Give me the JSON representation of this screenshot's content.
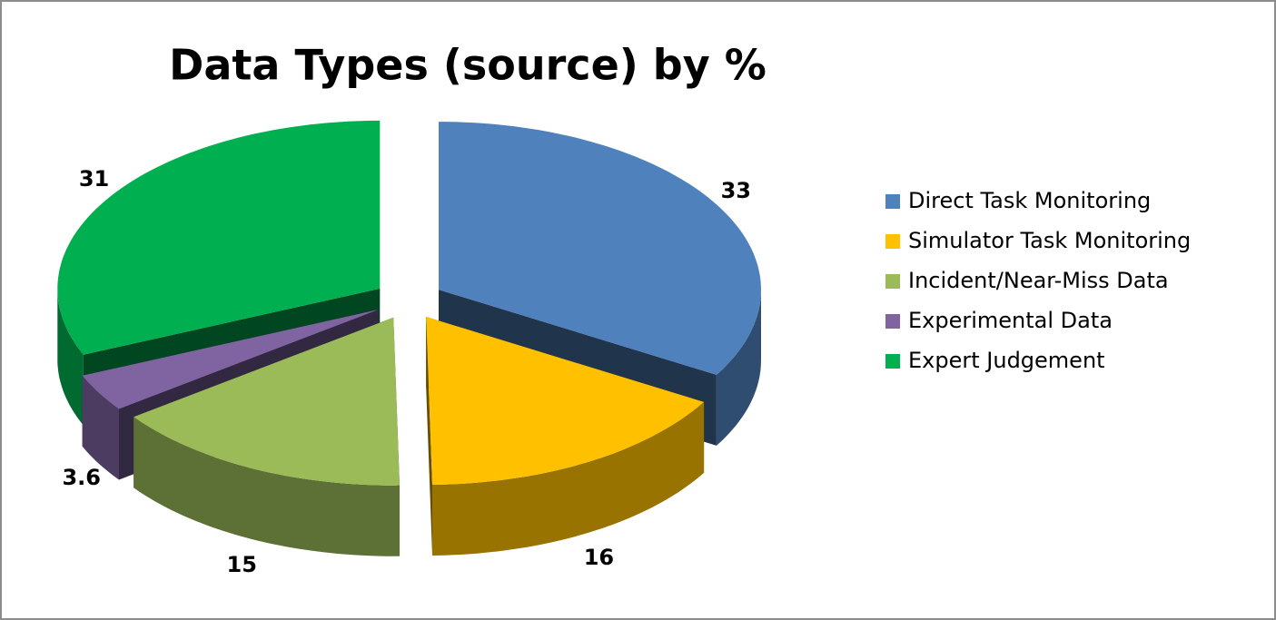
{
  "chart_data": {
    "type": "pie",
    "title": "Data Types (source) by %",
    "categories": [
      "Direct Task Monitoring",
      "Simulator Task Monitoring",
      "Incident/Near-Miss Data",
      "Experimental Data",
      "Expert Judgement"
    ],
    "values": [
      33,
      16,
      15,
      3.6,
      31
    ],
    "colors": [
      "#4f81bd",
      "#ffc000",
      "#9bbb59",
      "#8064a2",
      "#00b050"
    ],
    "legend": "right"
  }
}
